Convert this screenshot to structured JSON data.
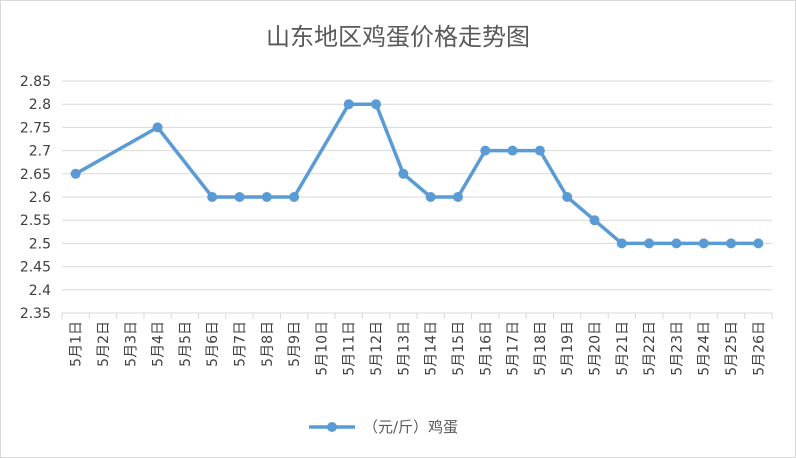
{
  "chart_data": {
    "type": "line",
    "title": "山东地区鸡蛋价格走势图",
    "xlabel": "",
    "ylabel": "",
    "categories": [
      "5月1日",
      "5月2日",
      "5月3日",
      "5月4日",
      "5月5日",
      "5月6日",
      "5月7日",
      "5月8日",
      "5月9日",
      "5月10日",
      "5月11日",
      "5月12日",
      "5月13日",
      "5月14日",
      "5月15日",
      "5月16日",
      "5月17日",
      "5月18日",
      "5月19日",
      "5月20日",
      "5月21日",
      "5月22日",
      "5月23日",
      "5月24日",
      "5月25日",
      "5月26日"
    ],
    "series": [
      {
        "name": "（元/斤）鸡蛋",
        "color": "#5b9bd5",
        "values": [
          2.65,
          null,
          null,
          2.75,
          null,
          2.6,
          2.6,
          2.6,
          2.6,
          null,
          2.8,
          2.8,
          2.65,
          2.6,
          2.6,
          2.7,
          2.7,
          2.7,
          2.6,
          2.55,
          2.5,
          2.5,
          2.5,
          2.5,
          2.5,
          2.5
        ]
      }
    ],
    "ylim": [
      2.35,
      2.85
    ],
    "yticks": [
      "2.35",
      "2.4",
      "2.45",
      "2.5",
      "2.55",
      "2.6",
      "2.65",
      "2.7",
      "2.75",
      "2.8",
      "2.85"
    ],
    "grid": true,
    "legend": "bottom"
  }
}
